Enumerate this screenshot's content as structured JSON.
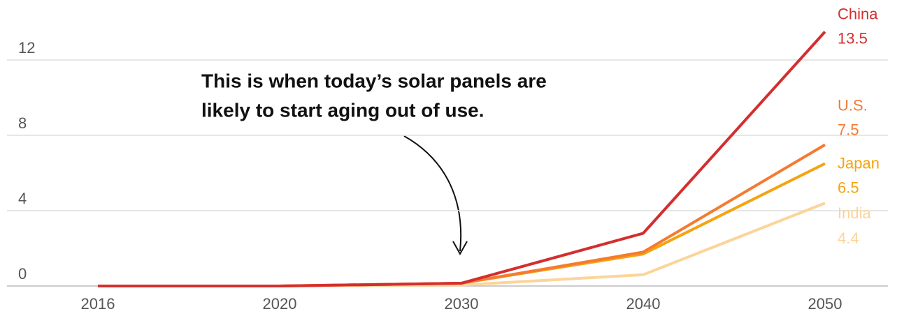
{
  "chart_data": {
    "type": "line",
    "categories": [
      "2016",
      "2020",
      "2030",
      "2040",
      "2050"
    ],
    "series": [
      {
        "name": "China",
        "color": "#d42e2e",
        "values": [
          0,
          0,
          0.15,
          2.8,
          13.5
        ]
      },
      {
        "name": "U.S.",
        "color": "#f47b30",
        "values": [
          0,
          0,
          0.15,
          1.8,
          7.5
        ]
      },
      {
        "name": "Japan",
        "color": "#f5a30f",
        "values": [
          0,
          0,
          0.15,
          1.7,
          6.5
        ]
      },
      {
        "name": "India",
        "color": "#fcd49a",
        "values": [
          0,
          0,
          0.05,
          0.6,
          4.4
        ]
      }
    ],
    "ylim": [
      0,
      14
    ],
    "yticks": [
      0,
      4,
      8,
      12
    ],
    "grid": true,
    "annotation": [
      "This is when today’s solar panels are",
      "likely to start aging out of use."
    ]
  }
}
